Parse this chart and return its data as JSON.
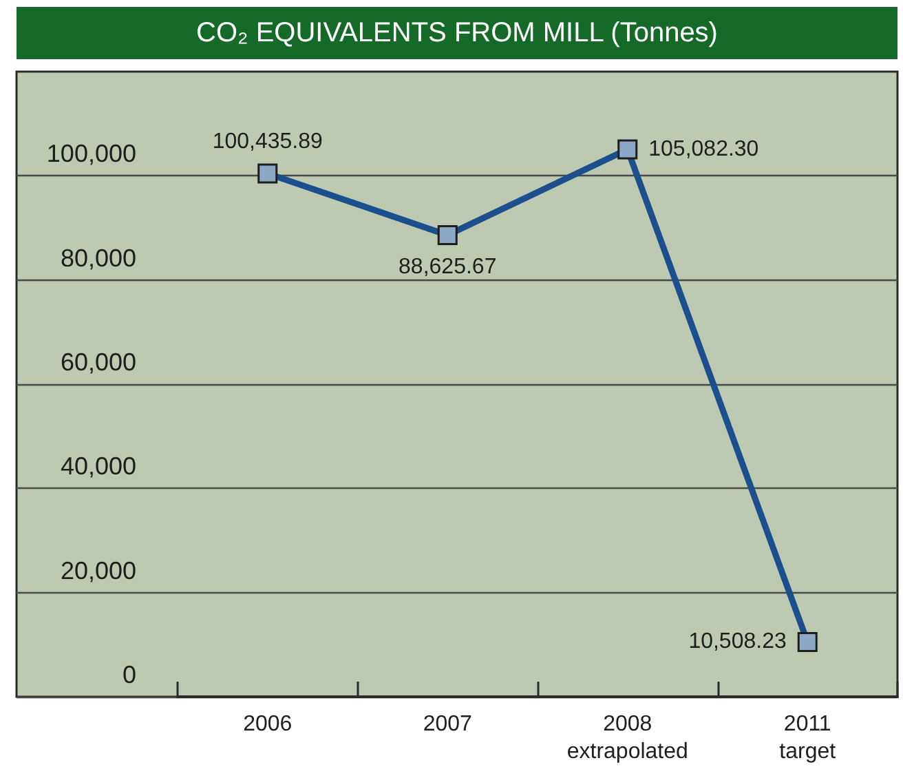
{
  "chart_data": {
    "type": "line",
    "title": "CO₂ EQUIVALENTS FROM MILL (Tonnes)",
    "categories": [
      "2006",
      "2007",
      "2008\nextrapolated",
      "2011\ntarget"
    ],
    "series": [
      {
        "color": "#1b4f8e",
        "values": [
          100435.89,
          88625.67,
          105082.3,
          10508.23
        ],
        "value_labels": [
          "100,435.89",
          "88,625.67",
          "105,082.30",
          "10,508.23"
        ]
      }
    ],
    "ylim": [
      0,
      120000
    ],
    "yticks": [
      0,
      {
        "value": 20000,
        "label": "20,000"
      },
      {
        "value": 40000,
        "label": "40,000"
      },
      {
        "value": 60000,
        "label": "60,000"
      },
      {
        "value": 80000,
        "label": "80,000"
      },
      {
        "value": 100000,
        "label": "100,000"
      }
    ],
    "grid": "y",
    "marker": "square",
    "line_style": "solid"
  }
}
